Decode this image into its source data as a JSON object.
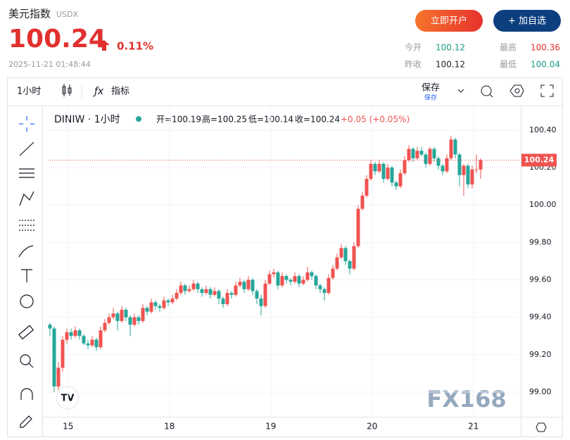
{
  "header": {
    "title": "美元指数",
    "symbol": "USDX",
    "price": "100.24",
    "change": "0.11%",
    "time": "2025-11-21 01:48:44",
    "open_account": "立即开户",
    "add_watch": "+ 加自选",
    "stats": [
      {
        "label": "今开",
        "value": "100.12"
      },
      {
        "label": "最高",
        "value": "100.36"
      },
      {
        "label": "昨收",
        "value": "100.12"
      },
      {
        "label": "最低",
        "value": "100.04"
      }
    ]
  },
  "toolbar": {
    "interval": "1小时",
    "indicators": "指标",
    "save": "保存",
    "save_sub": "保存"
  },
  "chart_data": {
    "type": "candlestick",
    "title": "DINIW · 1小时",
    "legend": [
      "开=100.19",
      "高=100.25",
      "低=100.14",
      "收=100.24",
      "+0.05 (+0.05%)"
    ],
    "watermark": "FX168",
    "logo": "TV",
    "up_color": "#ef5350",
    "down_color": "#26a69a",
    "last_price": 100.24,
    "last_price_label": "100.24",
    "ylim": [
      98.868,
      100.524
    ],
    "yticks": [
      {
        "value": 99.0,
        "label": "99.00"
      },
      {
        "value": 99.2,
        "label": "99.20"
      },
      {
        "value": 99.4,
        "label": "99.40"
      },
      {
        "value": 99.6,
        "label": "99.60"
      },
      {
        "value": 99.8,
        "label": "99.80"
      },
      {
        "value": 100.0,
        "label": "100.00"
      },
      {
        "value": 100.2,
        "label": "100.20"
      },
      {
        "value": 100.4,
        "label": "100.40"
      }
    ],
    "xlim": [
      -0.5,
      111.5
    ],
    "xticks": [
      {
        "value": 4.3,
        "label": "15"
      },
      {
        "value": 28.3,
        "label": "18"
      },
      {
        "value": 52.3,
        "label": "19"
      },
      {
        "value": 76.3,
        "label": "20"
      },
      {
        "value": 100.3,
        "label": "21"
      }
    ],
    "grid": true,
    "ohlc": [
      [
        99.36,
        99.37,
        99.3,
        99.34
      ],
      [
        99.34,
        99.35,
        99.0,
        99.03
      ],
      [
        99.03,
        99.16,
        99.01,
        99.13
      ],
      [
        99.13,
        99.3,
        99.11,
        99.28
      ],
      [
        99.28,
        99.34,
        99.26,
        99.32
      ],
      [
        99.32,
        99.34,
        99.28,
        99.3
      ],
      [
        99.3,
        99.35,
        99.29,
        99.33
      ],
      [
        99.33,
        99.34,
        99.28,
        99.3
      ],
      [
        99.3,
        99.31,
        99.25,
        99.26
      ],
      [
        99.26,
        99.28,
        99.23,
        99.25
      ],
      [
        99.25,
        99.3,
        99.24,
        99.28
      ],
      [
        99.28,
        99.29,
        99.22,
        99.24
      ],
      [
        99.24,
        99.35,
        99.23,
        99.33
      ],
      [
        99.33,
        99.39,
        99.32,
        99.37
      ],
      [
        99.37,
        99.42,
        99.36,
        99.4
      ],
      [
        99.4,
        99.45,
        99.39,
        99.42
      ],
      [
        99.42,
        99.43,
        99.33,
        99.38
      ],
      [
        99.38,
        99.46,
        99.37,
        99.44
      ],
      [
        99.44,
        99.45,
        99.38,
        99.4
      ],
      [
        99.4,
        99.41,
        99.3,
        99.36
      ],
      [
        99.36,
        99.42,
        99.35,
        99.4
      ],
      [
        99.4,
        99.41,
        99.36,
        99.38
      ],
      [
        99.38,
        99.47,
        99.37,
        99.45
      ],
      [
        99.45,
        99.46,
        99.41,
        99.43
      ],
      [
        99.43,
        99.5,
        99.42,
        99.48
      ],
      [
        99.48,
        99.49,
        99.44,
        99.46
      ],
      [
        99.46,
        99.47,
        99.43,
        99.45
      ],
      [
        99.45,
        99.51,
        99.44,
        99.49
      ],
      [
        99.49,
        99.5,
        99.46,
        99.48
      ],
      [
        99.48,
        99.52,
        99.47,
        99.5
      ],
      [
        99.5,
        99.55,
        99.49,
        99.53
      ],
      [
        99.53,
        99.59,
        99.52,
        99.57
      ],
      [
        99.57,
        99.58,
        99.52,
        99.54
      ],
      [
        99.54,
        99.57,
        99.53,
        99.55
      ],
      [
        99.55,
        99.6,
        99.54,
        99.58
      ],
      [
        99.58,
        99.59,
        99.53,
        99.55
      ],
      [
        99.55,
        99.56,
        99.51,
        99.53
      ],
      [
        99.53,
        99.57,
        99.52,
        99.55
      ],
      [
        99.55,
        99.56,
        99.5,
        99.52
      ],
      [
        99.52,
        99.56,
        99.51,
        99.54
      ],
      [
        99.54,
        99.55,
        99.47,
        99.5
      ],
      [
        99.5,
        99.51,
        99.45,
        99.47
      ],
      [
        99.47,
        99.55,
        99.46,
        99.53
      ],
      [
        99.53,
        99.54,
        99.5,
        99.52
      ],
      [
        99.52,
        99.59,
        99.51,
        99.57
      ],
      [
        99.57,
        99.61,
        99.56,
        99.59
      ],
      [
        99.59,
        99.6,
        99.53,
        99.55
      ],
      [
        99.55,
        99.62,
        99.54,
        99.6
      ],
      [
        99.6,
        99.61,
        99.52,
        99.54
      ],
      [
        99.54,
        99.55,
        99.47,
        99.5
      ],
      [
        99.5,
        99.52,
        99.41,
        99.46
      ],
      [
        99.46,
        99.6,
        99.45,
        99.58
      ],
      [
        99.58,
        99.65,
        99.57,
        99.63
      ],
      [
        99.63,
        99.66,
        99.61,
        99.64
      ],
      [
        99.64,
        99.65,
        99.55,
        99.57
      ],
      [
        99.57,
        99.64,
        99.56,
        99.62
      ],
      [
        99.62,
        99.63,
        99.58,
        99.6
      ],
      [
        99.6,
        99.61,
        99.57,
        99.59
      ],
      [
        99.59,
        99.64,
        99.58,
        99.62
      ],
      [
        99.62,
        99.63,
        99.56,
        99.58
      ],
      [
        99.58,
        99.62,
        99.57,
        99.6
      ],
      [
        99.6,
        99.67,
        99.59,
        99.64
      ],
      [
        99.64,
        99.65,
        99.6,
        99.62
      ],
      [
        99.62,
        99.63,
        99.55,
        99.57
      ],
      [
        99.57,
        99.58,
        99.53,
        99.55
      ],
      [
        99.55,
        99.56,
        99.49,
        99.53
      ],
      [
        99.53,
        99.63,
        99.52,
        99.61
      ],
      [
        99.61,
        99.68,
        99.6,
        99.66
      ],
      [
        99.66,
        99.74,
        99.65,
        99.72
      ],
      [
        99.72,
        99.79,
        99.71,
        99.77
      ],
      [
        99.77,
        99.78,
        99.68,
        99.7
      ],
      [
        99.7,
        99.71,
        99.63,
        99.66
      ],
      [
        99.66,
        99.8,
        99.65,
        99.78
      ],
      [
        99.78,
        100.0,
        99.77,
        99.98
      ],
      [
        99.98,
        100.07,
        99.97,
        100.05
      ],
      [
        100.05,
        100.16,
        100.04,
        100.14
      ],
      [
        100.14,
        100.24,
        100.13,
        100.22
      ],
      [
        100.22,
        100.23,
        100.16,
        100.18
      ],
      [
        100.18,
        100.24,
        100.17,
        100.22
      ],
      [
        100.22,
        100.23,
        100.12,
        100.14
      ],
      [
        100.14,
        100.22,
        100.13,
        100.2
      ],
      [
        100.2,
        100.21,
        100.1,
        100.12
      ],
      [
        100.12,
        100.13,
        100.08,
        100.1
      ],
      [
        100.1,
        100.19,
        100.09,
        100.17
      ],
      [
        100.17,
        100.26,
        100.16,
        100.24
      ],
      [
        100.24,
        100.32,
        100.23,
        100.3
      ],
      [
        100.3,
        100.31,
        100.23,
        100.25
      ],
      [
        100.25,
        100.31,
        100.24,
        100.29
      ],
      [
        100.29,
        100.31,
        100.26,
        100.27
      ],
      [
        100.27,
        100.28,
        100.2,
        100.22
      ],
      [
        100.22,
        100.31,
        100.21,
        100.3
      ],
      [
        100.3,
        100.31,
        100.23,
        100.25
      ],
      [
        100.25,
        100.26,
        100.19,
        100.21
      ],
      [
        100.21,
        100.22,
        100.16,
        100.18
      ],
      [
        100.18,
        100.27,
        100.17,
        100.25
      ],
      [
        100.25,
        100.37,
        100.24,
        100.35
      ],
      [
        100.35,
        100.36,
        100.25,
        100.27
      ],
      [
        100.27,
        100.28,
        100.1,
        100.16
      ],
      [
        100.16,
        100.22,
        100.05,
        100.21
      ],
      [
        100.21,
        100.22,
        100.09,
        100.11
      ],
      [
        100.11,
        100.21,
        100.09,
        100.19
      ],
      [
        100.19,
        100.27,
        100.17,
        100.19
      ],
      [
        100.19,
        100.25,
        100.14,
        100.24
      ]
    ]
  }
}
